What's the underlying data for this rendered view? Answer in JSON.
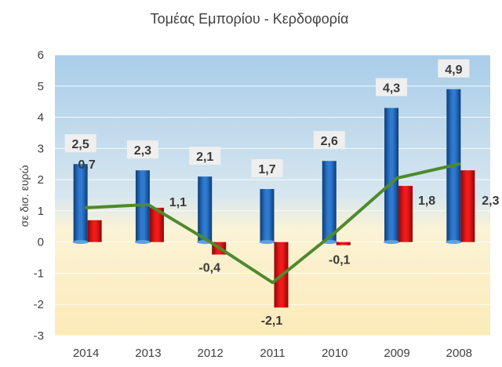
{
  "chart_data": {
    "type": "bar",
    "title": "Τομέας Εμπορίου -  Κερδοφορία",
    "ylabel": "σε δισ. ευρώ",
    "xlabel": "",
    "categories": [
      "2014",
      "2013",
      "2012",
      "2011",
      "2010",
      "2009",
      "2008"
    ],
    "series": [
      {
        "type": "bar",
        "color": "#1f5fb0",
        "values": [
          2.5,
          2.3,
          2.1,
          1.7,
          2.6,
          4.3,
          4.9
        ],
        "labels": [
          "2,5",
          "2,3",
          "2,1",
          "1,7",
          "2,6",
          "4,3",
          "4,9"
        ]
      },
      {
        "type": "bar",
        "color": "#e01010",
        "values": [
          0.7,
          1.1,
          -0.4,
          -2.1,
          -0.1,
          1.8,
          2.3
        ],
        "labels": [
          "0,7",
          "1,1",
          "-0,4",
          "-2,1",
          "-0,1",
          "1,8",
          "2,3"
        ]
      },
      {
        "type": "line",
        "color": "#4e8a2c",
        "values": [
          1.1,
          1.2,
          0.0,
          -1.3,
          0.3,
          2.05,
          2.5
        ]
      }
    ],
    "ylim": [
      -3,
      6
    ],
    "yticks": [
      "6",
      "5",
      "4",
      "3",
      "2",
      "1",
      "0",
      "-1",
      "-2",
      "-3"
    ],
    "grid": true
  }
}
